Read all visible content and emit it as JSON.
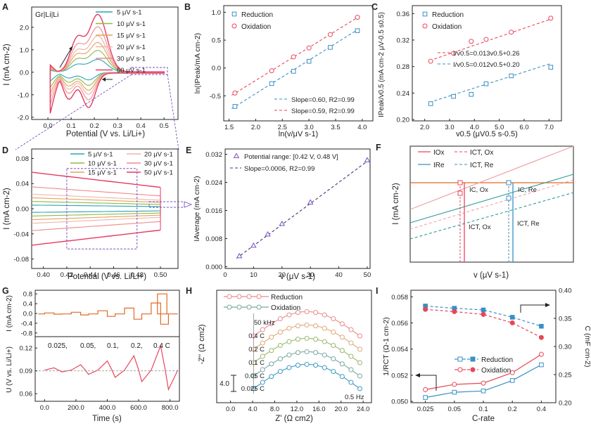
{
  "figure": {
    "colors": {
      "red": "#e8465a",
      "blue": "#3a8fc4",
      "axis": "#222222",
      "purple": "#7b4fbd",
      "orange": "#e06a22",
      "pink": "#f0a3a8",
      "teal": "#2f9a9a",
      "cv": [
        "#2aa5b4",
        "#8fb848",
        "#e3a25c",
        "#f2b2a8",
        "#ee8a8a",
        "#e63a62"
      ]
    }
  },
  "chart_data": [
    {
      "panel": "A",
      "type": "line",
      "label": "Gr|Li|Li",
      "xlabel": "Potential (V vs. Li/Li+)",
      "ylabel": "I (mA cm-2)",
      "xlim": [
        -0.07,
        0.56
      ],
      "ylim": [
        -2.1,
        2.9
      ],
      "xticks": [
        0.0,
        0.1,
        0.2,
        0.3,
        0.4,
        0.5
      ],
      "xtick_labels": [
        "0.0",
        "0.1",
        "0.2",
        "0.3",
        "0.4",
        "0.5"
      ],
      "yticks": [
        -2,
        -1,
        0,
        1,
        2
      ],
      "ytick_labels": [
        "-2.0",
        "-1.0",
        "0.0",
        "1.0",
        "2.0"
      ],
      "legend": [
        "5 μV s-1",
        "10 μV s-1",
        "15 μV s-1",
        "20 μV s-1",
        "30 μV s-1",
        "50 μV s-1"
      ],
      "peak_currents": [
        0.55,
        0.95,
        1.3,
        1.6,
        2.0,
        2.55
      ]
    },
    {
      "panel": "B",
      "type": "scatter",
      "xlabel": "ln(v/μV s-1)",
      "ylabel": "ln(IPeak/mA cm-2)",
      "xlim": [
        1.4,
        4.2
      ],
      "ylim": [
        -0.95,
        1.12
      ],
      "xticks": [
        1.5,
        2.0,
        2.5,
        3.0,
        3.5,
        4.0
      ],
      "xtick_labels": [
        "1.5",
        "2.0",
        "2.5",
        "3.0",
        "3.5",
        "4.0"
      ],
      "yticks": [
        -0.5,
        0.0,
        0.5,
        1.0
      ],
      "ytick_labels": [
        "-0.5",
        "0.0",
        "0.5",
        "1.0"
      ],
      "series": [
        {
          "name": "Reduction",
          "x": [
            1.61,
            2.3,
            2.71,
            3.0,
            3.4,
            3.91
          ],
          "y": [
            -0.69,
            -0.28,
            -0.06,
            0.12,
            0.37,
            0.67
          ]
        },
        {
          "name": "Oxidation",
          "x": [
            1.61,
            2.3,
            2.71,
            3.0,
            3.4,
            3.91
          ],
          "y": [
            -0.45,
            -0.05,
            0.2,
            0.36,
            0.6,
            0.91
          ]
        }
      ],
      "fits": [
        {
          "label": "Slope=0.60, R2=0.99",
          "x": [
            1.55,
            3.95
          ],
          "y": [
            -0.73,
            0.71
          ]
        },
        {
          "label": "Slope=0.59, R2=0.99",
          "x": [
            1.55,
            3.95
          ],
          "y": [
            -0.49,
            0.93
          ]
        }
      ]
    },
    {
      "panel": "C",
      "type": "scatter",
      "xlabel": "v0.5 (μV0.5 s-0.5)",
      "ylabel": "IPeak/v0.5 (mA cm-2 μV-0.5 s0.5)",
      "xlim": [
        1.5,
        7.5
      ],
      "ylim": [
        0.198,
        0.372
      ],
      "xticks": [
        2,
        3,
        4,
        5,
        6,
        7
      ],
      "xtick_labels": [
        "2.0",
        "3.0",
        "4.0",
        "5.0",
        "6.0",
        "7.0"
      ],
      "yticks": [
        0.2,
        0.24,
        0.28,
        0.32,
        0.36
      ],
      "ytick_labels": [
        "0.20",
        "0.24",
        "0.28",
        "0.32",
        "0.36"
      ],
      "series": [
        {
          "name": "Reduction",
          "x": [
            2.24,
            3.16,
            3.87,
            4.47,
            5.48,
            7.07
          ],
          "y": [
            0.224,
            0.235,
            0.238,
            0.254,
            0.266,
            0.279
          ]
        },
        {
          "name": "Oxidation",
          "x": [
            2.24,
            3.16,
            3.87,
            4.47,
            5.48,
            7.07
          ],
          "y": [
            0.288,
            0.3,
            0.318,
            0.321,
            0.332,
            0.353
          ]
        }
      ],
      "fits": [
        {
          "label": "I/v0.5=0.013v0.5+0.26",
          "x": [
            2.2,
            7.1
          ],
          "y": [
            0.289,
            0.352
          ]
        },
        {
          "label": "I/v0.5=0.012v0.5+0.20",
          "x": [
            2.2,
            7.1
          ],
          "y": [
            0.226,
            0.285
          ]
        }
      ]
    },
    {
      "panel": "D",
      "type": "line",
      "xlabel": "Potential (V vs. Li/Li+)",
      "ylabel": "I (mA cm-2)",
      "xlim": [
        0.39,
        0.515
      ],
      "ylim": [
        -0.095,
        0.095
      ],
      "xticks": [
        0.4,
        0.42,
        0.44,
        0.46,
        0.48,
        0.5
      ],
      "xtick_labels": [
        "0.40",
        "0.42",
        "0.44",
        "0.46",
        "0.48",
        "0.50"
      ],
      "yticks": [
        -0.08,
        -0.04,
        0.0,
        0.04,
        0.08
      ],
      "ytick_labels": [
        "-0.08",
        "-0.04",
        "0.00",
        "0.04",
        "0.08"
      ],
      "legend": [
        "5 μV s-1",
        "10 μV s-1",
        "15 μV s-1",
        "20 μV s-1",
        "30 μV s-1",
        "50 μV s-1"
      ],
      "window": "0.42–0.48 V"
    },
    {
      "panel": "E",
      "type": "scatter",
      "xlabel": "v (μV s-1)",
      "ylabel": "IAverage (mA cm-2)",
      "xlim": [
        0,
        51
      ],
      "ylim": [
        -0.0005,
        0.0335
      ],
      "xticks": [
        0,
        10,
        20,
        30,
        40,
        50
      ],
      "xtick_labels": [
        "0",
        "10",
        "20",
        "30",
        "40",
        "50"
      ],
      "yticks": [
        0.0,
        0.008,
        0.016,
        0.024,
        0.032
      ],
      "ytick_labels": [
        "0.000",
        "0.008",
        "0.016",
        "0.024",
        "0.032"
      ],
      "series": [
        {
          "name": "Potential range: [0.42 V, 0.48 V]",
          "x": [
            5,
            10,
            15,
            20,
            30,
            50
          ],
          "y": [
            0.003,
            0.006,
            0.0092,
            0.0122,
            0.0183,
            0.0303
          ]
        }
      ],
      "fits": [
        {
          "label": "Slope=0.0006, R2=0.99",
          "x": [
            4,
            50
          ],
          "y": [
            0.0024,
            0.03
          ]
        }
      ]
    },
    {
      "panel": "F",
      "type": "line",
      "schematic": true,
      "xlabel": "v (μV s-1)",
      "ylabel": "I (mA cm-2)",
      "legend": [
        "IOx",
        "ICT, Ox",
        "IRe",
        "ICT, Re"
      ],
      "annotations": [
        "IC, Ox",
        "IC, Re",
        "ICT, Ox",
        "ICT, Re"
      ]
    },
    {
      "panel": "G",
      "type": "line",
      "xlabel": "Time (s)",
      "ylabel_top": "I (mA cm-2)",
      "ylabel_bottom": "U (V vs. Li/Li+)",
      "xlim": [
        -60,
        860
      ],
      "xticks": [
        0,
        200,
        400,
        600,
        800
      ],
      "xtick_labels": [
        "0.0",
        "200.0",
        "400.0",
        "600.0",
        "800.0"
      ],
      "top_ylim": [
        -0.95,
        0.95
      ],
      "top_yticks": [
        -0.8,
        -0.4,
        0.0,
        0.4,
        0.8
      ],
      "top_ytick_labels": [
        "-0.8",
        "-0.4",
        "0.0",
        "0.4",
        "0.8"
      ],
      "bottom_ylim": [
        0.05,
        0.135
      ],
      "bottom_yticks": [
        0.06,
        0.09,
        0.12
      ],
      "bottom_ytick_labels": [
        "0.06",
        "0.09",
        "0.12"
      ],
      "c_rates": [
        "0.025,",
        "0.05,",
        "0.1,",
        "0.2,",
        "0.4 C"
      ],
      "current_steps": [
        0.02,
        0.05,
        0.11,
        0.22,
        0.43,
        0.8
      ],
      "voltage_peaks": [
        0.094,
        0.098,
        0.103,
        0.11,
        0.123
      ]
    },
    {
      "panel": "H",
      "type": "line",
      "xlabel": "Z' (Ω cm2)",
      "ylabel": "-Z'' (Ω cm2)",
      "xlim": [
        -2.5,
        25.5
      ],
      "xticks": [
        0,
        4,
        8,
        12,
        16,
        20,
        24
      ],
      "xtick_labels": [
        "0.0",
        "4.0",
        "8.0",
        "12.0",
        "16.0",
        "20.0",
        "24.0"
      ],
      "legend": [
        "Reduction",
        "Oxidation"
      ],
      "curves": [
        "0.4 C",
        "0.2 C",
        "0.1 C",
        "0.05 C",
        "0.025 C"
      ],
      "scale_bar": "4.0",
      "annotations": [
        "50 kHz",
        "0.5 Hz"
      ]
    },
    {
      "panel": "I",
      "type": "line",
      "xlabel": "C-rate",
      "ylabel_left": "1/RCT (Ω-1 cm-2)",
      "ylabel_right": "C (mF cm-2)",
      "categories": [
        "0.025",
        "0.05",
        "0.1",
        "0.2",
        "0.4"
      ],
      "left_ylim": [
        0.0499,
        0.0585
      ],
      "left_yticks": [
        0.05,
        0.052,
        0.054,
        0.056,
        0.058
      ],
      "left_ytick_labels": [
        "0.050",
        "0.052",
        "0.054",
        "0.056",
        "0.058"
      ],
      "right_ylim": [
        0.2,
        0.4
      ],
      "right_yticks": [
        0.2,
        0.25,
        0.3,
        0.35,
        0.4
      ],
      "right_ytick_labels": [
        "0.20",
        "0.25",
        "0.30",
        "0.35",
        "0.40"
      ],
      "series": [
        {
          "name": "Reduction",
          "axis": "left",
          "values": [
            0.0503,
            0.0507,
            0.0508,
            0.0516,
            0.0528
          ]
        },
        {
          "name": "Oxidation",
          "axis": "left",
          "values": [
            0.0509,
            0.0513,
            0.0514,
            0.0522,
            0.0536
          ]
        },
        {
          "name": "Reduction",
          "axis": "right",
          "values": [
            0.372,
            0.368,
            0.365,
            0.352,
            0.336
          ]
        },
        {
          "name": "Oxidation",
          "axis": "right",
          "values": [
            0.366,
            0.362,
            0.357,
            0.342,
            0.316
          ]
        }
      ]
    }
  ],
  "panel_labels": [
    "A",
    "B",
    "C",
    "D",
    "E",
    "F",
    "G",
    "H",
    "I"
  ]
}
